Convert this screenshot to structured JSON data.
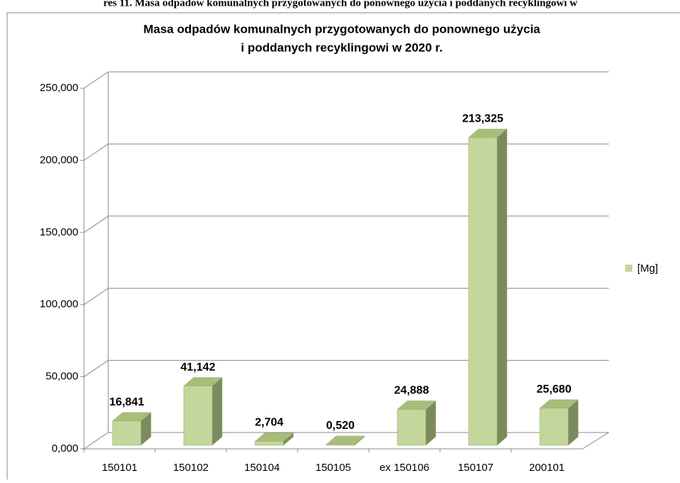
{
  "caption": "res 11. Masa odpadów komunalnych przygotowanych do ponownego użycia i poddanych recyklingowi w",
  "chart_data": {
    "type": "bar3d",
    "title": [
      "Masa odpadów komunalnych przygotowanych do ponownego użycia",
      "i poddanych recyklingowi w 2020 r."
    ],
    "categories": [
      "150101",
      "150102",
      "150104",
      "150105",
      "ex 150106",
      "150107",
      "200101"
    ],
    "series": [
      {
        "name": "[Mg]",
        "color": "#c3d69b",
        "values": [
          16.841,
          41.142,
          2.704,
          0.52,
          24.888,
          213.325,
          25.68
        ],
        "value_labels": [
          "16,841",
          "41,142",
          "2,704",
          "0,520",
          "24,888",
          "213,325",
          "25,680"
        ]
      }
    ],
    "ylim": [
      0,
      250
    ],
    "yticks": [
      {
        "value": 0,
        "label": "0,000"
      },
      {
        "value": 50,
        "label": "50,000"
      },
      {
        "value": 100,
        "label": "100,000"
      },
      {
        "value": 150,
        "label": "150,000"
      },
      {
        "value": 200,
        "label": "200,000"
      },
      {
        "value": 250,
        "label": "250,000"
      }
    ],
    "grid": true,
    "legend": "right"
  }
}
